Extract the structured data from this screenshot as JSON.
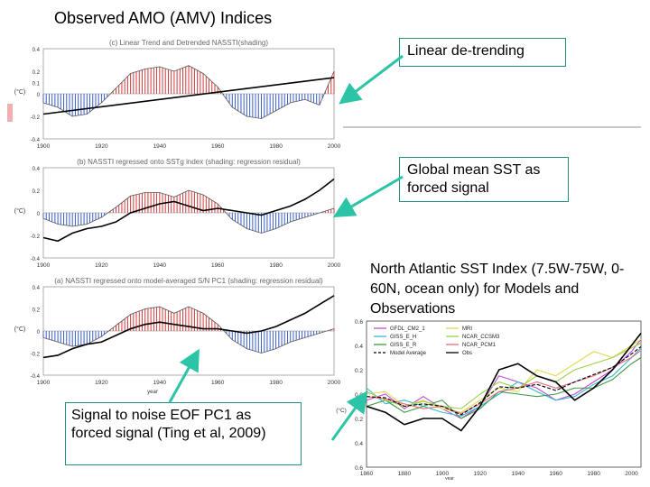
{
  "title": "Observed AMO (AMV) Indices",
  "callouts": {
    "linear": "Linear de-trending",
    "global": "Global mean SST as forced signal",
    "na_title": "North Atlantic SST Index (7.5W-75W, 0-60N, ocean only) for Models and Observations",
    "s2n": "Signal to noise EOF PC1 as forced signal (Ting et al, 2009)"
  },
  "colors": {
    "positive": "#d33b3b",
    "negative": "#3b5fc8",
    "callout_border": "#1f8f8a",
    "arrow": "#2bc4a6"
  },
  "chart_data": [
    {
      "type": "area",
      "title": "(c) Linear Trend and Detrended NASSTI(shading)",
      "ylabel": "(°C)",
      "xlabel": "",
      "xlim": [
        1900,
        2000
      ],
      "ylim": [
        -0.4,
        0.4
      ],
      "y_ticks": [
        "0.4",
        "0.2",
        "0.1",
        "0",
        "-0.2",
        "-0.4"
      ],
      "x_ticks": [
        "1900",
        "1920",
        "1940",
        "1960",
        "1980",
        "2000"
      ],
      "shading_x": [
        1900,
        1905,
        1910,
        1915,
        1920,
        1925,
        1930,
        1935,
        1940,
        1945,
        1950,
        1955,
        1960,
        1965,
        1970,
        1975,
        1980,
        1985,
        1990,
        1995,
        2000
      ],
      "shading_y": [
        -0.08,
        -0.12,
        -0.2,
        -0.18,
        -0.08,
        0.05,
        0.18,
        0.22,
        0.24,
        0.2,
        0.25,
        0.18,
        0.06,
        -0.12,
        -0.2,
        -0.22,
        -0.15,
        -0.08,
        -0.05,
        -0.1,
        0.2
      ],
      "trend_line": [
        [
          1900,
          -0.18
        ],
        [
          2005,
          0.16
        ]
      ]
    },
    {
      "type": "area",
      "title": "(b) NASSTI regressed onto SSTg index (shading: regression residual)",
      "ylabel": "(°C)",
      "xlabel": "",
      "xlim": [
        1900,
        2000
      ],
      "ylim": [
        -0.4,
        0.4
      ],
      "y_ticks": [
        "0.4",
        "0.2",
        "0",
        "-0.2",
        "-0.4"
      ],
      "x_ticks": [
        "1900",
        "1920",
        "1940",
        "1960",
        "1980",
        "2000"
      ],
      "shading_x": [
        1900,
        1905,
        1910,
        1915,
        1920,
        1925,
        1930,
        1935,
        1940,
        1945,
        1950,
        1955,
        1960,
        1965,
        1970,
        1975,
        1980,
        1985,
        1990,
        1995,
        2000
      ],
      "shading_y": [
        -0.05,
        -0.1,
        -0.12,
        -0.1,
        -0.04,
        0.05,
        0.15,
        0.18,
        0.18,
        0.14,
        0.2,
        0.16,
        0.08,
        -0.06,
        -0.14,
        -0.18,
        -0.14,
        -0.08,
        -0.04,
        0.0,
        0.04
      ],
      "forced_x": [
        1900,
        1905,
        1910,
        1915,
        1920,
        1925,
        1930,
        1935,
        1940,
        1945,
        1950,
        1955,
        1960,
        1965,
        1970,
        1975,
        1980,
        1985,
        1990,
        1995,
        2000
      ],
      "forced_y": [
        -0.22,
        -0.25,
        -0.18,
        -0.14,
        -0.12,
        -0.08,
        0.0,
        0.04,
        0.08,
        0.1,
        0.06,
        0.02,
        0.04,
        0.02,
        0.0,
        -0.02,
        0.02,
        0.06,
        0.12,
        0.2,
        0.3
      ]
    },
    {
      "type": "area",
      "title": "(a) NASSTI regressed onto model-averaged S/N PC1 (shading: regression residual)",
      "ylabel": "(°C)",
      "xlabel": "year",
      "xlim": [
        1900,
        2000
      ],
      "ylim": [
        -0.4,
        0.4
      ],
      "y_ticks": [
        "0.4",
        "0.2",
        "0",
        "-0.2",
        "-0.4"
      ],
      "x_ticks": [
        "1900",
        "1920",
        "1940",
        "1960",
        "1980",
        "2000"
      ],
      "shading_x": [
        1900,
        1905,
        1910,
        1915,
        1920,
        1925,
        1930,
        1935,
        1940,
        1945,
        1950,
        1955,
        1960,
        1965,
        1970,
        1975,
        1980,
        1985,
        1990,
        1995,
        2000
      ],
      "shading_y": [
        -0.06,
        -0.1,
        -0.14,
        -0.12,
        -0.05,
        0.05,
        0.15,
        0.2,
        0.22,
        0.16,
        0.22,
        0.16,
        0.06,
        -0.08,
        -0.16,
        -0.2,
        -0.16,
        -0.1,
        -0.06,
        -0.02,
        0.02
      ],
      "forced_x": [
        1900,
        1905,
        1910,
        1915,
        1920,
        1925,
        1930,
        1935,
        1940,
        1945,
        1950,
        1955,
        1960,
        1965,
        1970,
        1975,
        1980,
        1985,
        1990,
        1995,
        2000
      ],
      "forced_y": [
        -0.24,
        -0.22,
        -0.16,
        -0.12,
        -0.1,
        -0.04,
        0.02,
        0.06,
        0.08,
        0.06,
        0.04,
        0.02,
        0.02,
        0.0,
        -0.02,
        0.0,
        0.04,
        0.1,
        0.16,
        0.24,
        0.32
      ]
    },
    {
      "type": "line",
      "title": "",
      "ylabel": "(°C)",
      "xlabel": "year",
      "xlim": [
        1860,
        2005
      ],
      "ylim": [
        -0.6,
        0.6
      ],
      "y_ticks": [
        "0.6",
        "0.4",
        "0.2",
        "0.0",
        "0.2",
        "0.4",
        "0.6"
      ],
      "x_ticks": [
        "1860",
        "1880",
        "1900",
        "1920",
        "1940",
        "1960",
        "1980",
        "2000"
      ],
      "x": [
        1860,
        1870,
        1880,
        1890,
        1900,
        1910,
        1920,
        1930,
        1940,
        1950,
        1960,
        1970,
        1980,
        1990,
        2000,
        2005
      ],
      "series": [
        {
          "name": "GFDL_CM2_1",
          "color": "#c24bd6",
          "values": [
            -0.05,
            0.0,
            -0.12,
            -0.02,
            -0.12,
            -0.2,
            -0.1,
            0.15,
            0.1,
            0.05,
            -0.05,
            0.0,
            0.1,
            0.2,
            0.35,
            0.45
          ]
        },
        {
          "name": "GISS_E_H",
          "color": "#35b7d8",
          "values": [
            0.05,
            -0.08,
            -0.05,
            -0.1,
            -0.15,
            -0.18,
            -0.1,
            0.0,
            0.1,
            0.02,
            -0.05,
            -0.02,
            0.08,
            0.15,
            0.3,
            0.38
          ]
        },
        {
          "name": "GISS_E_R",
          "color": "#3d9b45",
          "values": [
            -0.1,
            -0.05,
            -0.15,
            -0.1,
            -0.05,
            -0.2,
            -0.12,
            0.02,
            0.0,
            -0.02,
            0.0,
            0.05,
            0.05,
            0.12,
            0.25,
            0.3
          ]
        },
        {
          "name": "MRI",
          "color": "#e1d94c",
          "values": [
            0.0,
            0.02,
            -0.1,
            -0.05,
            -0.12,
            -0.15,
            -0.05,
            0.05,
            0.02,
            0.2,
            0.15,
            0.25,
            0.35,
            0.3,
            0.4,
            0.45
          ]
        },
        {
          "name": "NCAR_CCSM3",
          "color": "#9fcf4e",
          "values": [
            0.02,
            -0.05,
            -0.1,
            -0.06,
            -0.1,
            -0.12,
            0.0,
            0.1,
            0.05,
            0.15,
            0.1,
            0.2,
            0.25,
            0.3,
            0.38,
            0.42
          ]
        },
        {
          "name": "NCAR_PCM1",
          "color": "#e46b7d",
          "values": [
            -0.02,
            -0.04,
            -0.08,
            -0.12,
            -0.1,
            -0.16,
            -0.08,
            0.02,
            0.05,
            0.1,
            0.05,
            0.1,
            0.15,
            0.22,
            0.3,
            0.36
          ]
        },
        {
          "name": "Model Average",
          "color": "#000000",
          "dashed": true,
          "values": [
            -0.02,
            -0.03,
            -0.1,
            -0.08,
            -0.1,
            -0.17,
            -0.07,
            0.06,
            0.05,
            0.08,
            0.03,
            0.1,
            0.16,
            0.22,
            0.33,
            0.39
          ]
        },
        {
          "name": "Obs",
          "color": "#000000",
          "values": [
            -0.1,
            -0.15,
            -0.25,
            -0.2,
            -0.2,
            -0.3,
            -0.1,
            0.2,
            0.25,
            0.15,
            0.1,
            -0.05,
            0.05,
            0.2,
            0.4,
            0.5
          ]
        }
      ]
    }
  ]
}
